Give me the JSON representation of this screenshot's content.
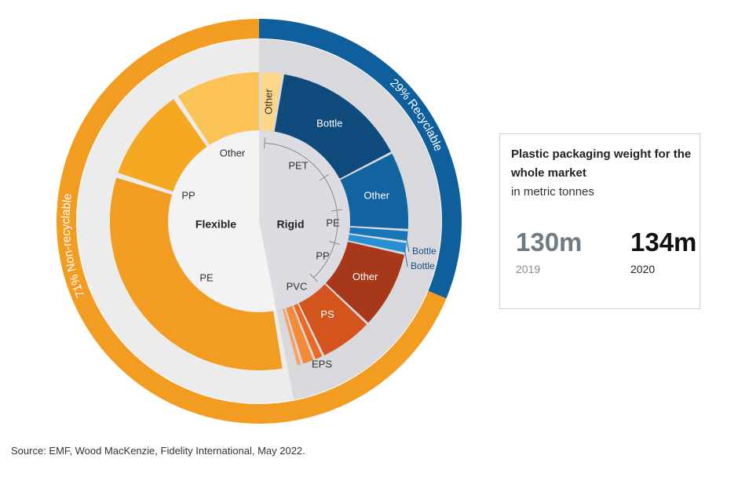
{
  "chart_data": {
    "type": "sunburst",
    "center_labels": {
      "flexible": "Flexible",
      "rigid": "Rigid"
    },
    "outer_ring": [
      {
        "label": "29% Recyclable",
        "share": 29,
        "color": "#0e5f9c"
      },
      {
        "label": "71% Non-recyclable",
        "share": 71,
        "color": "#f39c22"
      }
    ],
    "flexible": {
      "name": "Flexible",
      "segments": [
        {
          "label": "PE",
          "share": 24.8,
          "color": "#f39c22"
        },
        {
          "label": "PP",
          "share": 12.5,
          "color": "#f5a821"
        },
        {
          "label": "Other",
          "share": 5.5,
          "color": "#fbc255"
        }
      ]
    },
    "rigid": {
      "name": "Rigid",
      "polymers": [
        "PET",
        "PE",
        "PP",
        "PVC",
        "EPS"
      ],
      "segments": [
        {
          "label": "Other",
          "share": 1.9,
          "color": "#fcd788"
        },
        {
          "label": "Bottle",
          "share": 11.6,
          "color": "#0e4a7c"
        },
        {
          "label": "Other",
          "share": 6.7,
          "color": "#11649f"
        },
        {
          "label": "Bottle",
          "share": 1.0,
          "color": "#1676b8"
        },
        {
          "label": "Bottle",
          "share": 1.0,
          "color": "#2690d1"
        },
        {
          "label": "Other",
          "share": 6.7,
          "color": "#a8381a"
        },
        {
          "label": "PS",
          "share": 4.6,
          "color": "#d4541e"
        },
        {
          "label": "",
          "share": 0.8,
          "color": "#ea6a24"
        },
        {
          "label": "EPS",
          "share": 1.1,
          "color": "#f28a3a"
        },
        {
          "label": "",
          "share": 0.5,
          "color": "#f5a463"
        }
      ]
    }
  },
  "info_box": {
    "title": "Plastic packaging weight for the whole market",
    "subtitle": "in metric tonnes",
    "stats": [
      {
        "value": "130m",
        "year": "2019"
      },
      {
        "value": "134m",
        "year": "2020"
      }
    ]
  },
  "source": "Source: EMF, Wood MacKenzie, Fidelity International, May 2022."
}
